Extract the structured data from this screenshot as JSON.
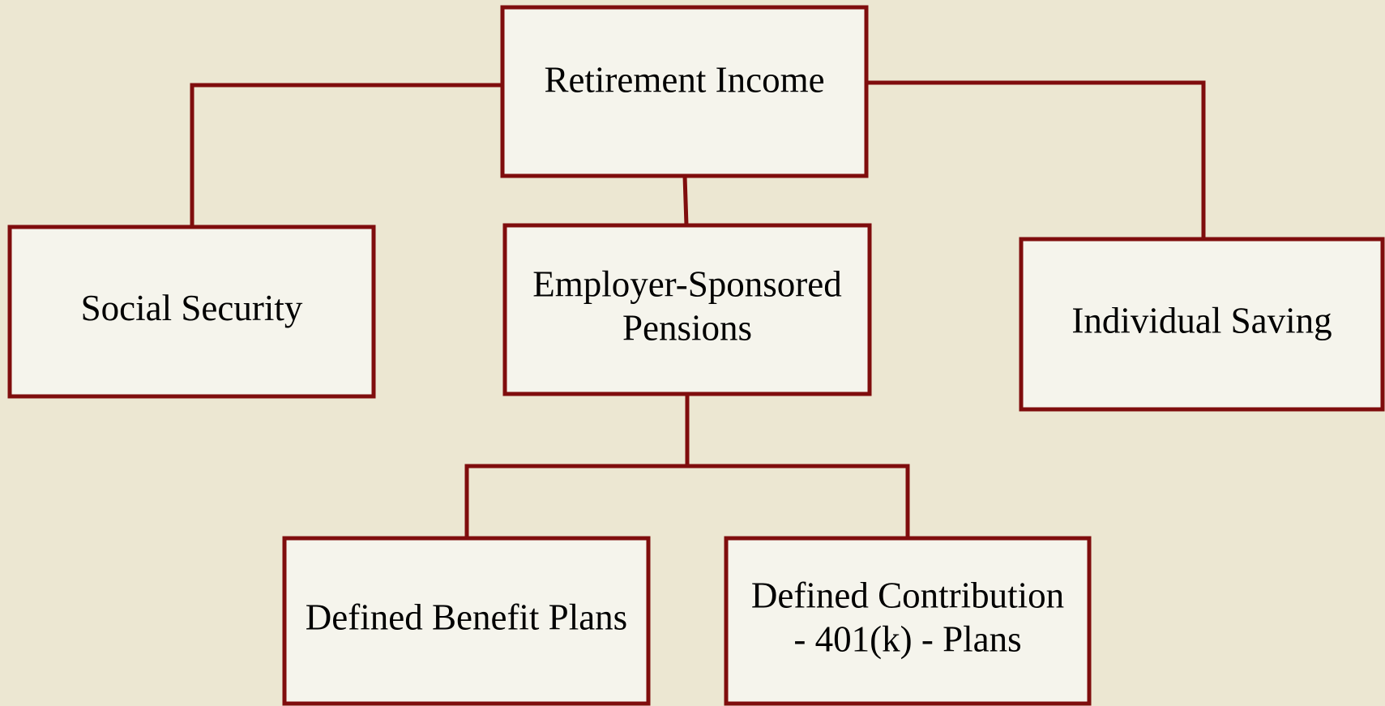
{
  "nodes": [
    {
      "label": [
        "Retirement Income"
      ]
    },
    {
      "label": [
        "Social Security"
      ]
    },
    {
      "label": [
        "Employer-Sponsored",
        "Pensions"
      ]
    },
    {
      "label": [
        "Individual Saving"
      ]
    },
    {
      "label": [
        "Defined Benefit Plans"
      ]
    },
    {
      "label": [
        "Defined Contribution",
        "- 401(k) - Plans"
      ]
    }
  ]
}
